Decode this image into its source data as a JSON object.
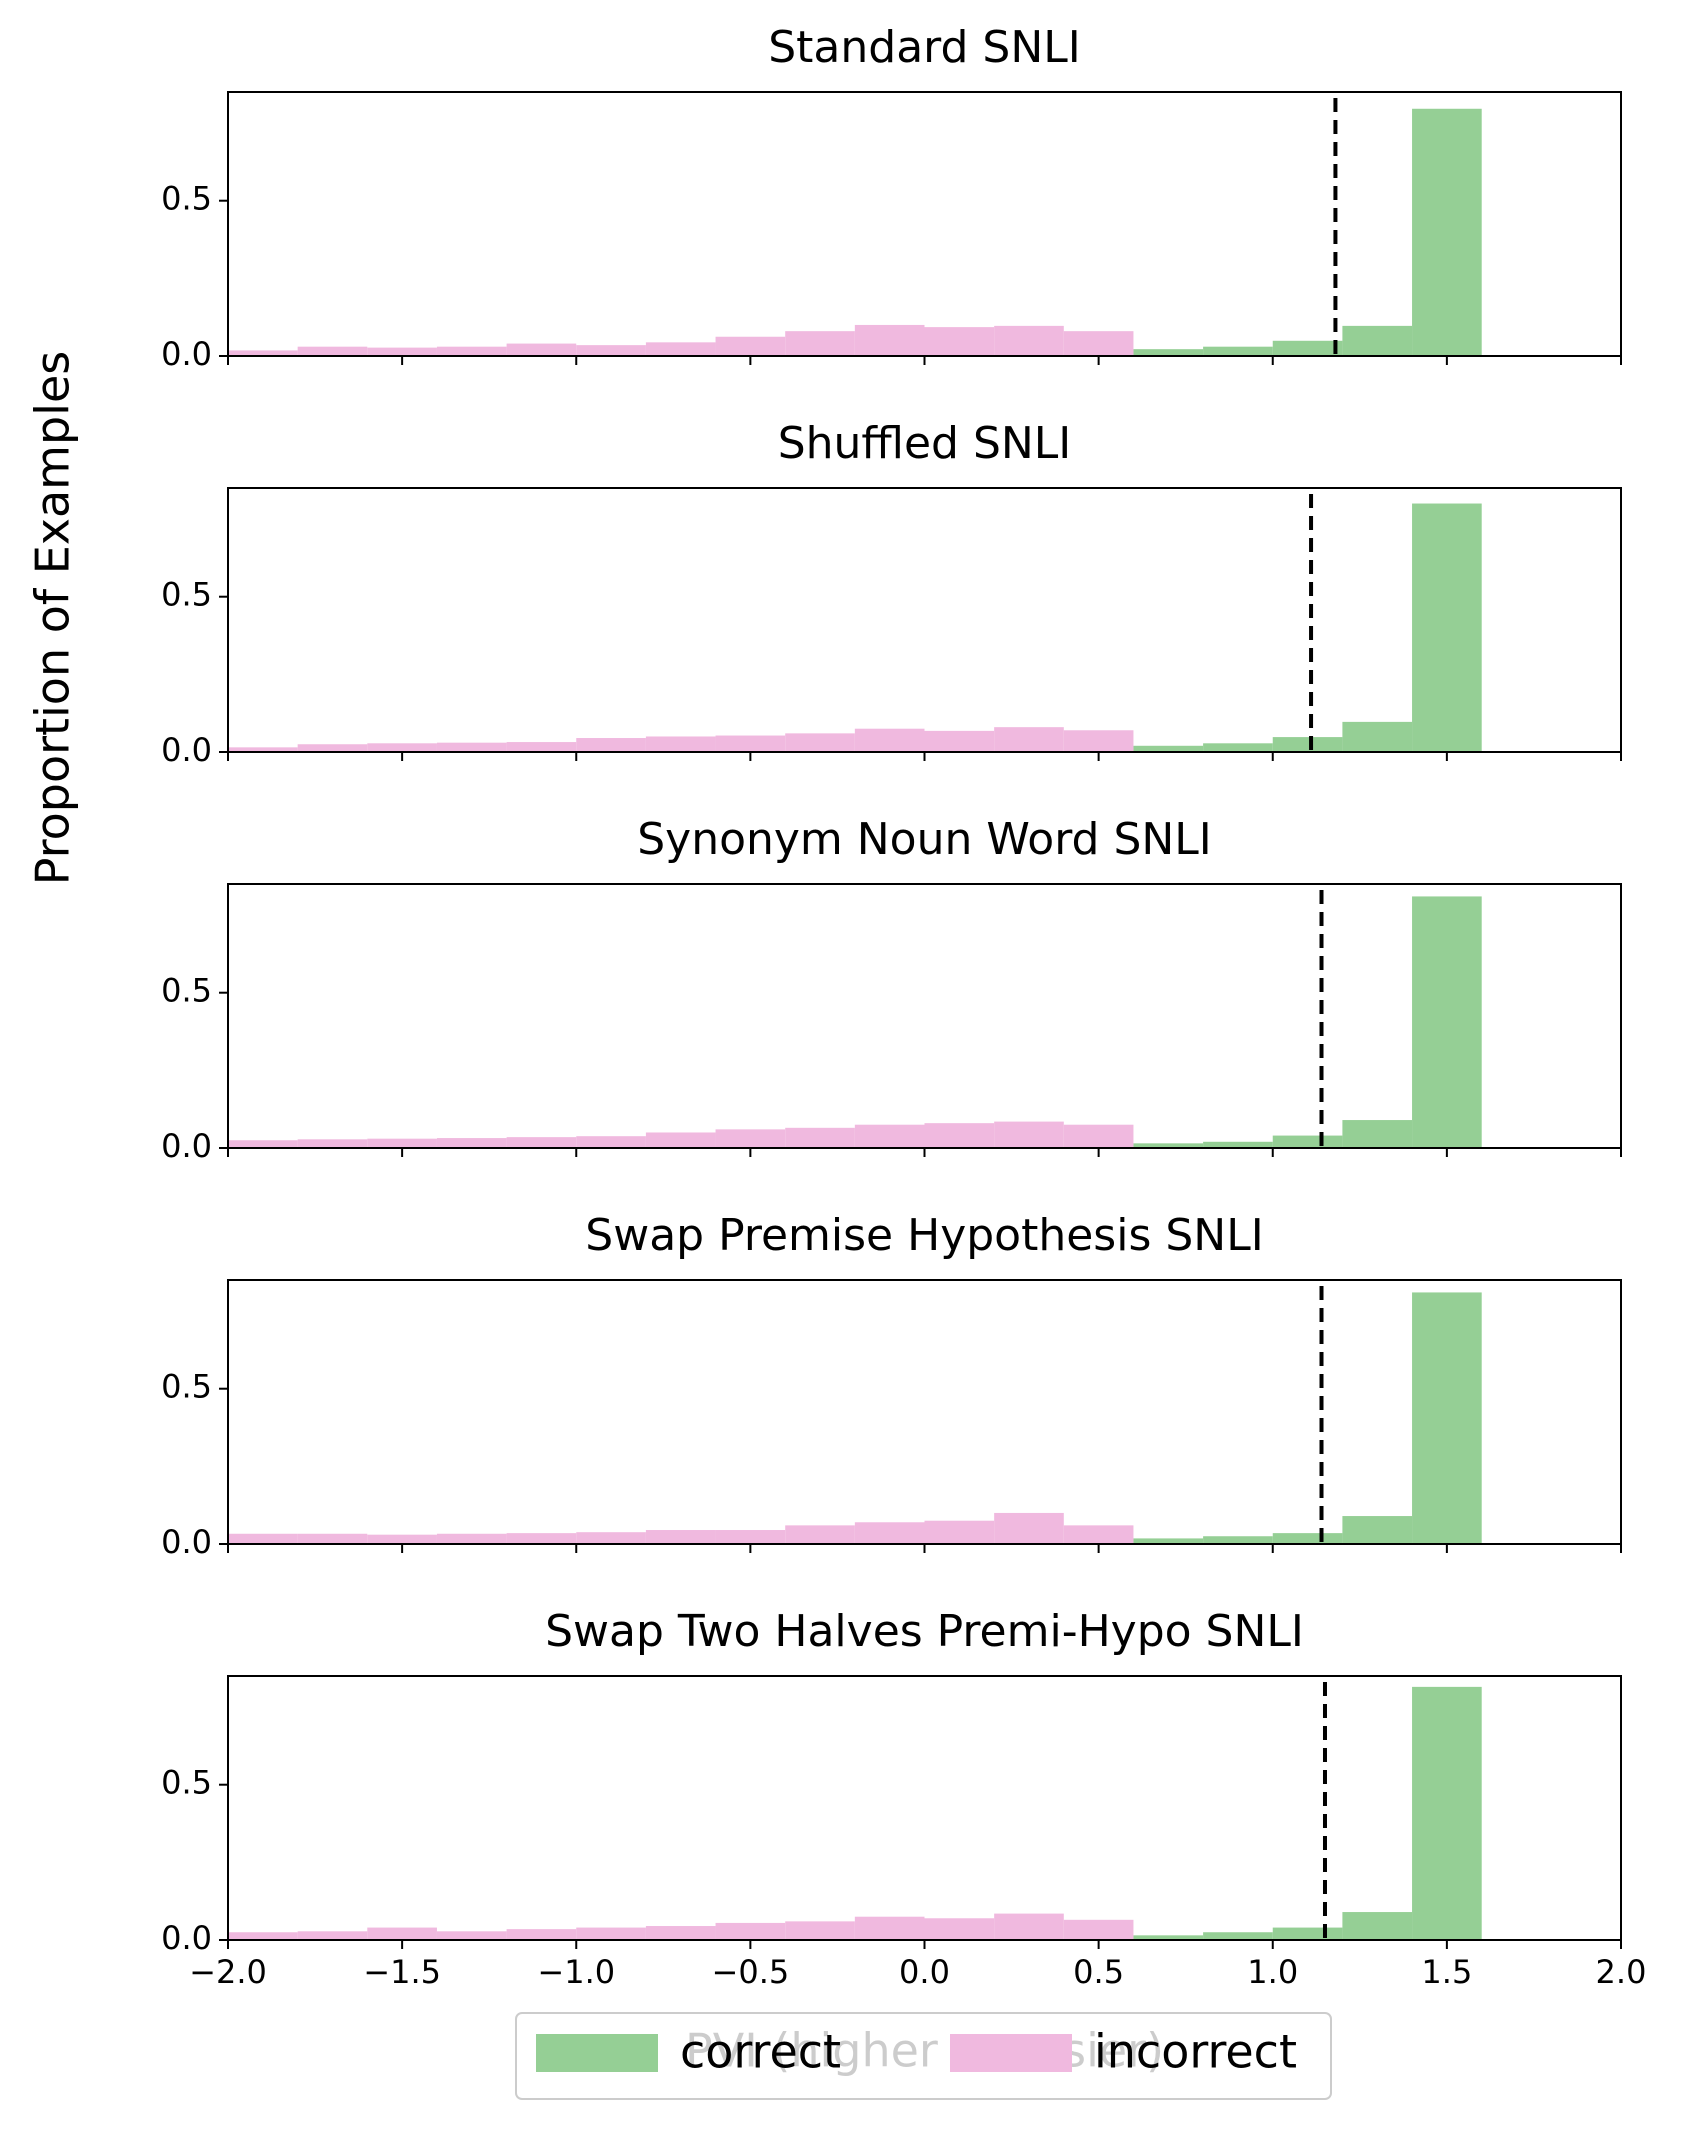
{
  "ylabel": "Proportion of Examples",
  "chart_data": [
    {
      "type": "histogram",
      "title": "Standard SNLI",
      "xlim": [
        -2,
        2
      ],
      "ylim": [
        0,
        0.85
      ],
      "yticks": [
        {
          "value": 0,
          "label": "0.0"
        },
        {
          "value": 0.5,
          "label": "0.5"
        }
      ],
      "threshold": 1.18,
      "series": [
        {
          "name": "correct",
          "color": "#95cf95",
          "bins": [
            0.6,
            0.8,
            1.0,
            1.2,
            1.4,
            1.6
          ],
          "values": [
            0.022,
            0.03,
            0.049,
            0.097,
            0.796
          ]
        },
        {
          "name": "incorrect",
          "color": "#f0b9df",
          "bins": [
            -2.0,
            -1.8,
            -1.6,
            -1.4,
            -1.2,
            -1.0,
            -0.8,
            -0.6,
            -0.4,
            -0.2,
            0.0,
            0.2,
            0.4,
            0.6
          ],
          "values": [
            0.018,
            0.03,
            0.027,
            0.03,
            0.04,
            0.035,
            0.044,
            0.062,
            0.08,
            0.1,
            0.093,
            0.097,
            0.08
          ]
        }
      ]
    },
    {
      "type": "histogram",
      "title": "Shuffled SNLI",
      "xlim": [
        -2,
        2
      ],
      "ylim": [
        0,
        0.85
      ],
      "yticks": [
        {
          "value": 0,
          "label": "0.0"
        },
        {
          "value": 0.5,
          "label": "0.5"
        }
      ],
      "threshold": 1.11,
      "series": [
        {
          "name": "correct",
          "color": "#95cf95",
          "bins": [
            0.6,
            0.8,
            1.0,
            1.2,
            1.4,
            1.6
          ],
          "values": [
            0.02,
            0.028,
            0.048,
            0.097,
            0.8
          ]
        },
        {
          "name": "incorrect",
          "color": "#f0b9df",
          "bins": [
            -2.0,
            -1.8,
            -1.6,
            -1.4,
            -1.2,
            -1.0,
            -0.8,
            -0.6,
            -0.4,
            -0.2,
            0.0,
            0.2,
            0.4,
            0.6
          ],
          "values": [
            0.015,
            0.025,
            0.028,
            0.03,
            0.032,
            0.045,
            0.05,
            0.053,
            0.06,
            0.075,
            0.068,
            0.08,
            0.07
          ]
        }
      ]
    },
    {
      "type": "histogram",
      "title": "Synonym Noun Word SNLI",
      "xlim": [
        -2,
        2
      ],
      "ylim": [
        0,
        0.85
      ],
      "yticks": [
        {
          "value": 0,
          "label": "0.0"
        },
        {
          "value": 0.5,
          "label": "0.5"
        }
      ],
      "threshold": 1.14,
      "series": [
        {
          "name": "correct",
          "color": "#95cf95",
          "bins": [
            0.6,
            0.8,
            1.0,
            1.2,
            1.4,
            1.6
          ],
          "values": [
            0.015,
            0.02,
            0.04,
            0.09,
            0.81
          ]
        },
        {
          "name": "incorrect",
          "color": "#f0b9df",
          "bins": [
            -2.0,
            -1.8,
            -1.6,
            -1.4,
            -1.2,
            -1.0,
            -0.8,
            -0.6,
            -0.4,
            -0.2,
            0.0,
            0.2,
            0.4,
            0.6
          ],
          "values": [
            0.025,
            0.028,
            0.03,
            0.032,
            0.035,
            0.038,
            0.05,
            0.06,
            0.065,
            0.075,
            0.08,
            0.085,
            0.075
          ]
        }
      ]
    },
    {
      "type": "histogram",
      "title": "Swap Premise Hypothesis SNLI",
      "xlim": [
        -2,
        2
      ],
      "ylim": [
        0,
        0.85
      ],
      "yticks": [
        {
          "value": 0,
          "label": "0.0"
        },
        {
          "value": 0.5,
          "label": "0.5"
        }
      ],
      "threshold": 1.14,
      "series": [
        {
          "name": "correct",
          "color": "#95cf95",
          "bins": [
            0.6,
            0.8,
            1.0,
            1.2,
            1.4,
            1.6
          ],
          "values": [
            0.018,
            0.025,
            0.035,
            0.09,
            0.81
          ]
        },
        {
          "name": "incorrect",
          "color": "#f0b9df",
          "bins": [
            -2.0,
            -1.8,
            -1.6,
            -1.4,
            -1.2,
            -1.0,
            -0.8,
            -0.6,
            -0.4,
            -0.2,
            0.0,
            0.2,
            0.4,
            0.6
          ],
          "values": [
            0.033,
            0.033,
            0.03,
            0.033,
            0.035,
            0.038,
            0.045,
            0.045,
            0.06,
            0.07,
            0.075,
            0.1,
            0.06
          ]
        }
      ]
    },
    {
      "type": "histogram",
      "title": "Swap Two Halves Premi-Hypo SNLI",
      "xlim": [
        -2,
        2
      ],
      "ylim": [
        0,
        0.85
      ],
      "yticks": [
        {
          "value": 0,
          "label": "0.0"
        },
        {
          "value": 0.5,
          "label": "0.5"
        }
      ],
      "threshold": 1.15,
      "xlabel": "PVI (higher ↔ easier)",
      "xticks": [
        {
          "value": -2,
          "label": "−2.0"
        },
        {
          "value": -1.5,
          "label": "−1.5"
        },
        {
          "value": -1,
          "label": "−1.0"
        },
        {
          "value": -0.5,
          "label": "−0.5"
        },
        {
          "value": 0,
          "label": "0.0"
        },
        {
          "value": 0.5,
          "label": "0.5"
        },
        {
          "value": 1,
          "label": "1.0"
        },
        {
          "value": 1.5,
          "label": "1.5"
        },
        {
          "value": 2,
          "label": "2.0"
        }
      ],
      "series": [
        {
          "name": "correct",
          "color": "#95cf95",
          "bins": [
            0.6,
            0.8,
            1.0,
            1.2,
            1.4,
            1.6
          ],
          "values": [
            0.015,
            0.025,
            0.04,
            0.09,
            0.815
          ]
        },
        {
          "name": "incorrect",
          "color": "#f0b9df",
          "bins": [
            -2.0,
            -1.8,
            -1.6,
            -1.4,
            -1.2,
            -1.0,
            -0.8,
            -0.6,
            -0.4,
            -0.2,
            0.0,
            0.2,
            0.4,
            0.6
          ],
          "values": [
            0.025,
            0.028,
            0.04,
            0.028,
            0.035,
            0.04,
            0.045,
            0.055,
            0.06,
            0.075,
            0.07,
            0.085,
            0.065
          ]
        }
      ]
    }
  ]
}
